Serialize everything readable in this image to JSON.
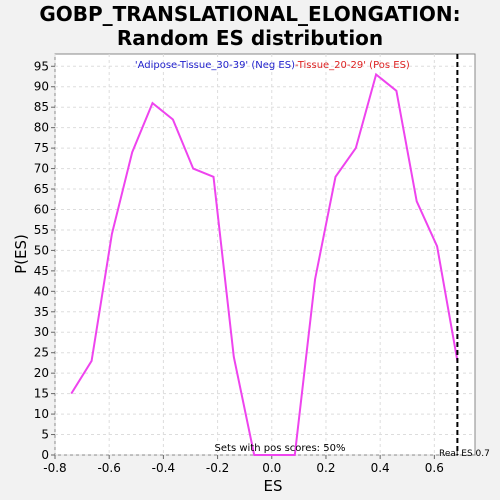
{
  "title_lines": [
    "GOBP_TRANSLATIONAL_ELONGATION:",
    "Random ES distribution"
  ],
  "chart_data": {
    "type": "line",
    "title": "GOBP_TRANSLATIONAL_ELONGATION: Random ES distribution",
    "xlabel": "ES",
    "ylabel": "P(ES)",
    "xlim": [
      -0.8,
      0.75
    ],
    "ylim": [
      0,
      98
    ],
    "x_ticks": [
      -0.8,
      -0.6,
      -0.4,
      -0.2,
      0.0,
      0.2,
      0.4,
      0.6
    ],
    "x_tick_labels": [
      "-0.8",
      "-0.6",
      "-0.4",
      "-0.2",
      "0.0",
      "0.2",
      "0.4",
      "0.6"
    ],
    "y_ticks": [
      0,
      5,
      10,
      15,
      20,
      25,
      30,
      35,
      40,
      45,
      50,
      55,
      60,
      65,
      70,
      75,
      80,
      85,
      90,
      95
    ],
    "grid": true,
    "series": [
      {
        "color": "#ee44ee",
        "x": [
          -0.74,
          -0.665,
          -0.59,
          -0.515,
          -0.44,
          -0.365,
          -0.29,
          -0.215,
          -0.14,
          -0.065,
          0.01,
          0.085,
          0.16,
          0.235,
          0.31,
          0.385,
          0.46,
          0.535,
          0.61,
          0.685
        ],
        "y": [
          15,
          23,
          54,
          74,
          86,
          82,
          70,
          68,
          24,
          0,
          0,
          0,
          43,
          68,
          75,
          93,
          89,
          62,
          51,
          23
        ]
      }
    ],
    "legend": {
      "neg_label": "'Adipose-Tissue_30-39' (Neg ES)",
      "pos_label": "-Tissue_20-29' (Pos ES)",
      "neg_color": "#2222cc",
      "pos_color": "#dd2222"
    },
    "annotations": {
      "pos_scores": "Sets with pos scores: 50%",
      "real_es_label": "Real ES 0.7",
      "real_es_x": 0.685
    }
  }
}
